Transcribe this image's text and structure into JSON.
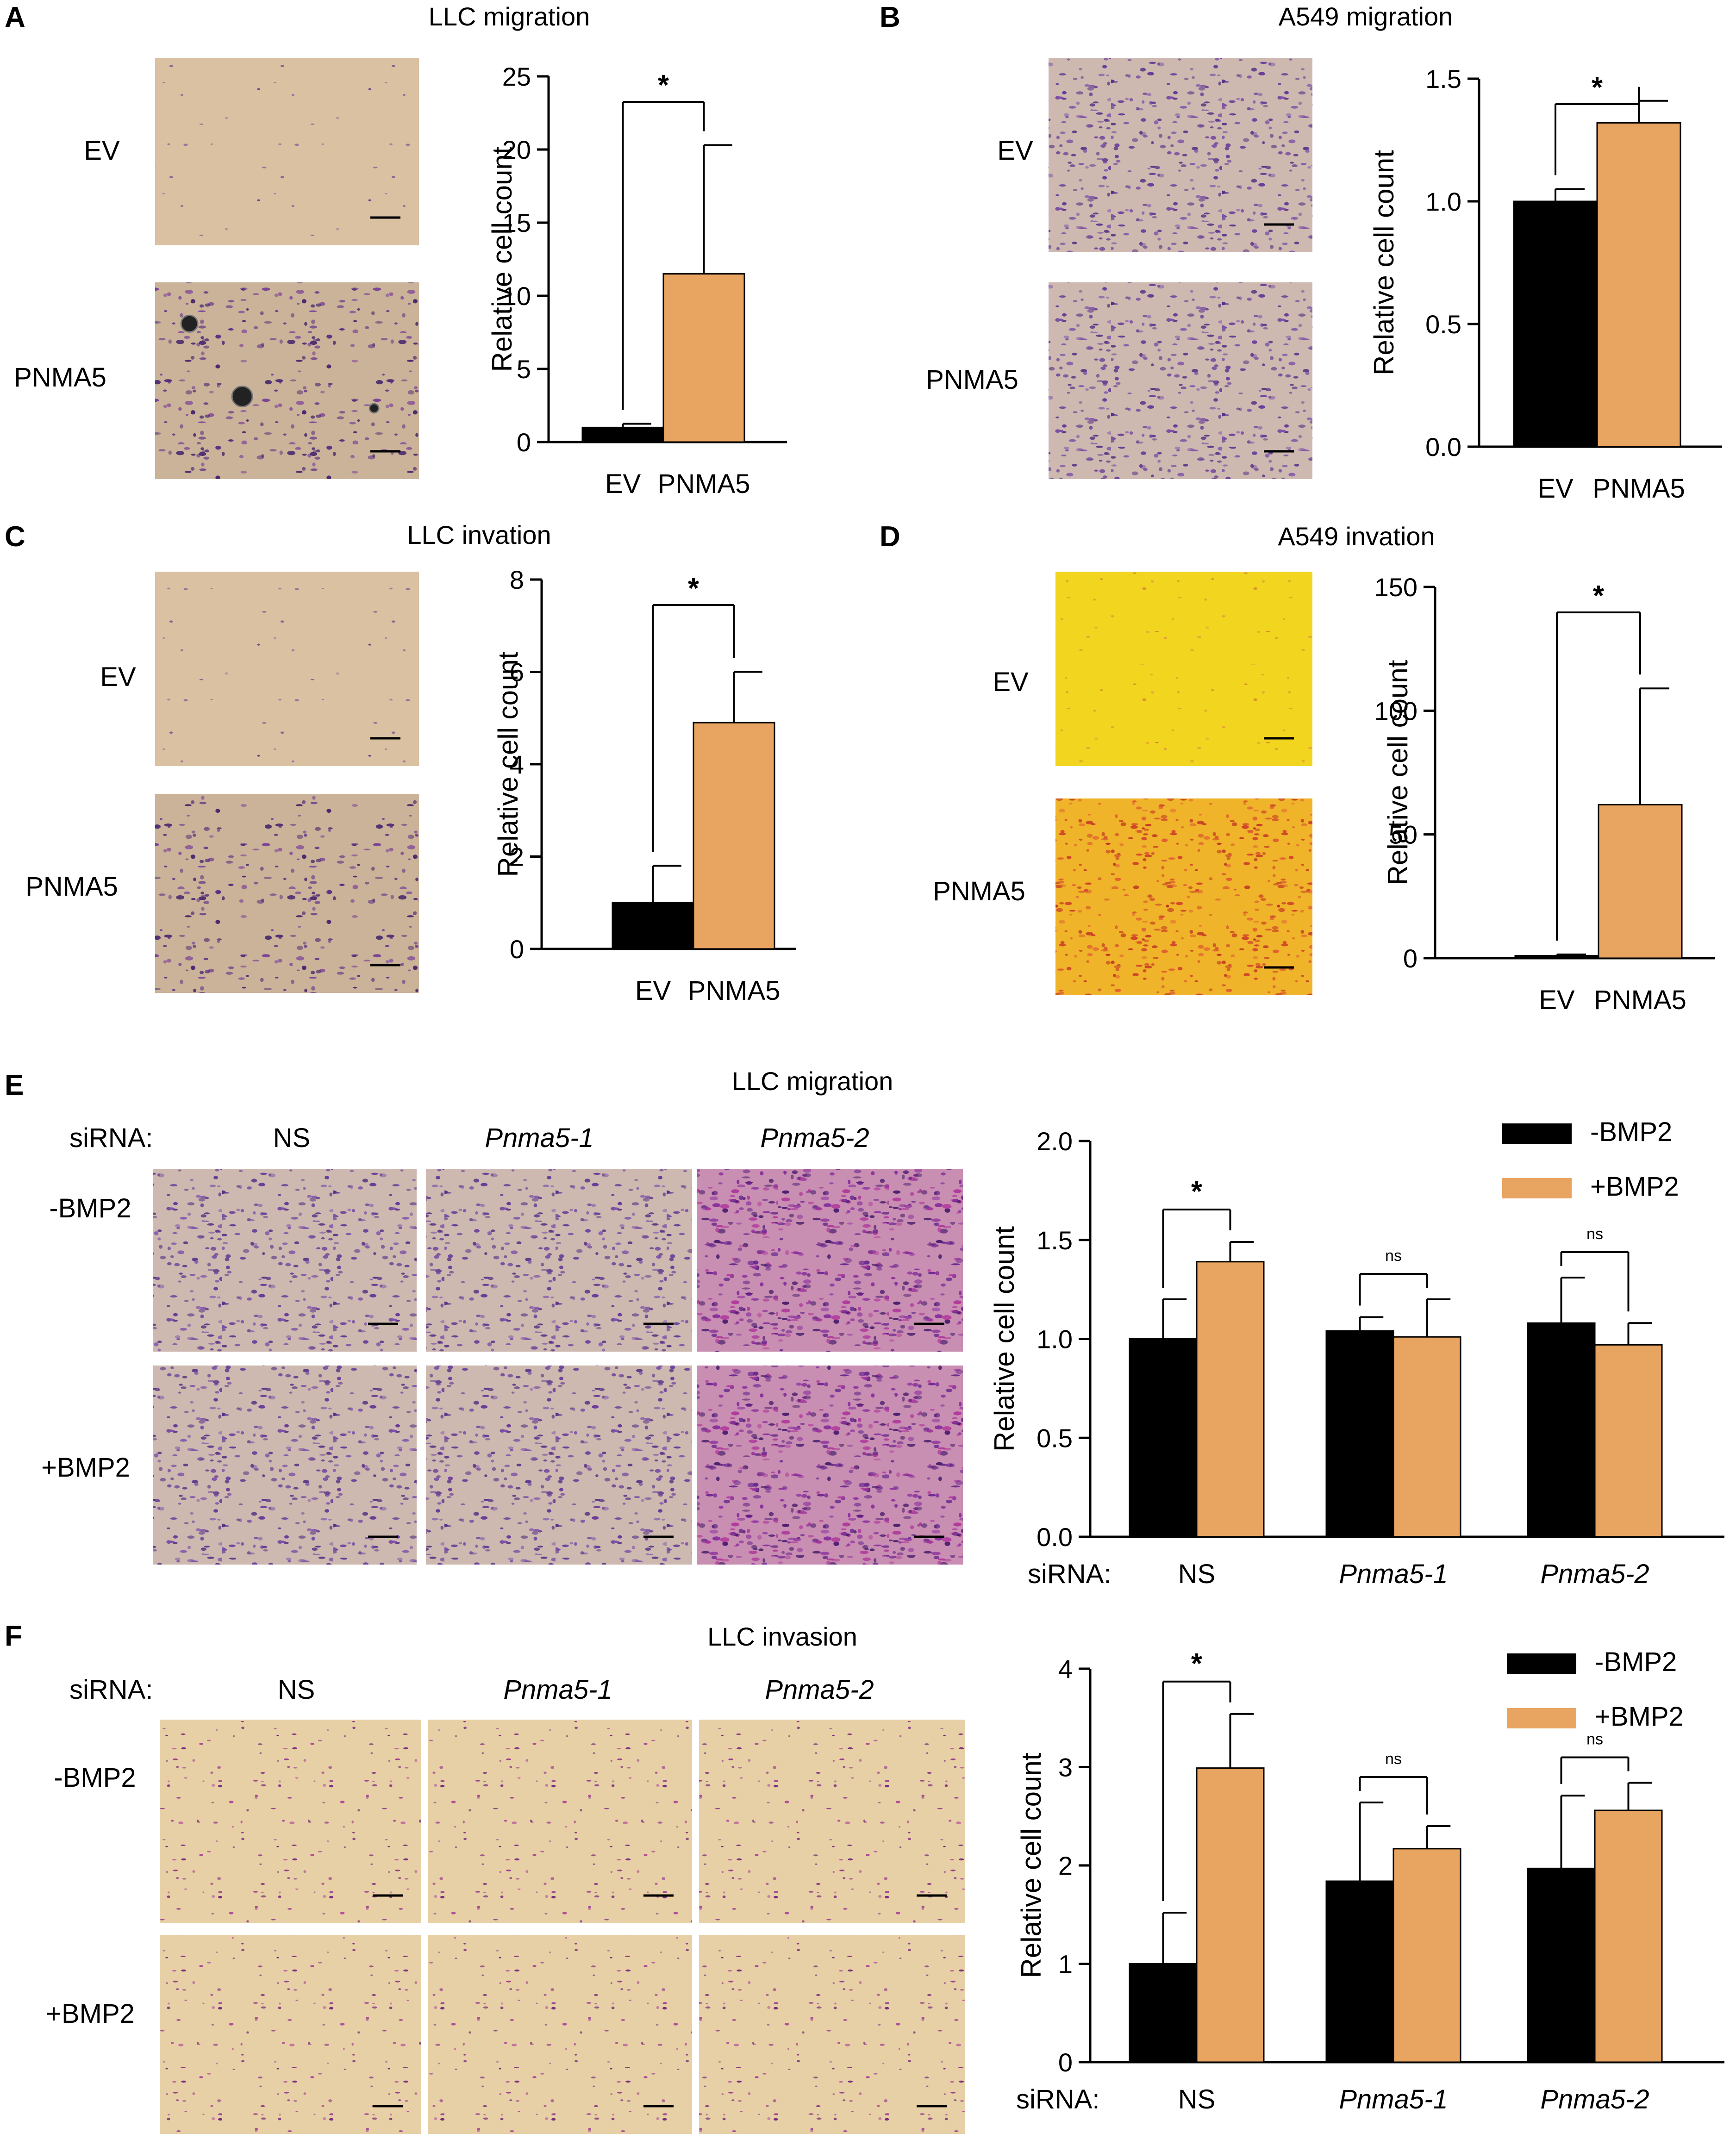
{
  "colors": {
    "ev": "#000000",
    "pnma5": "#E8A461",
    "axis": "#000000"
  },
  "panels": {
    "A": {
      "letter": "A",
      "title": "LLC migration",
      "row_labels": [
        "EV",
        "PNMA5"
      ],
      "texture": "purple_sparse"
    },
    "B": {
      "letter": "B",
      "title": "A549 migration",
      "row_labels": [
        "EV",
        "PNMA5"
      ],
      "texture": "purple_dense"
    },
    "C": {
      "letter": "C",
      "title": "LLC invation",
      "row_labels": [
        "EV",
        "PNMA5"
      ],
      "texture": "purple_sparse"
    },
    "D": {
      "letter": "D",
      "title": "A549 invation",
      "row_labels": [
        "EV",
        "PNMA5"
      ],
      "texture": "yellow_red"
    },
    "E": {
      "letter": "E",
      "title": "LLC   migration",
      "sirna_label": "siRNA:",
      "col_labels": [
        "NS",
        "Pnma5-1",
        "Pnma5-2"
      ],
      "row_labels": [
        "-BMP2",
        "+BMP2"
      ]
    },
    "F": {
      "letter": "F",
      "title": "LLC invasion",
      "sirna_label": "siRNA:",
      "col_labels": [
        "NS",
        "Pnma5-1",
        "Pnma5-2"
      ],
      "row_labels": [
        "-BMP2",
        "+BMP2"
      ]
    }
  },
  "chart_data": [
    {
      "panel": "A",
      "type": "bar",
      "categories": [
        "EV",
        "PNMA5"
      ],
      "values": [
        1.0,
        11.5
      ],
      "errors": [
        0.25,
        8.8
      ],
      "ylabel": "Relative cell count",
      "ylim": [
        0,
        25
      ],
      "yticks": [
        0,
        5,
        10,
        15,
        20,
        25
      ],
      "significance": [
        {
          "pair": [
            "EV",
            "PNMA5"
          ],
          "label": "*"
        }
      ]
    },
    {
      "panel": "B",
      "type": "bar",
      "categories": [
        "EV",
        "PNMA5"
      ],
      "values": [
        1.0,
        1.32
      ],
      "errors": [
        0.05,
        0.09
      ],
      "ylabel": "Relative cell count",
      "ylim": [
        0,
        1.5
      ],
      "yticks": [
        "0.0",
        "0.5",
        "1.0",
        "1.5"
      ],
      "significance": [
        {
          "pair": [
            "EV",
            "PNMA5"
          ],
          "label": "*"
        }
      ]
    },
    {
      "panel": "C",
      "type": "bar",
      "categories": [
        "EV",
        "PNMA5"
      ],
      "values": [
        1.0,
        4.9
      ],
      "errors": [
        0.8,
        1.1
      ],
      "ylabel": "Relative cell count",
      "ylim": [
        0,
        8
      ],
      "yticks": [
        0,
        2,
        4,
        6,
        8
      ],
      "significance": [
        {
          "pair": [
            "EV",
            "PNMA5"
          ],
          "label": "*"
        }
      ]
    },
    {
      "panel": "D",
      "type": "bar",
      "categories": [
        "EV",
        "PNMA5"
      ],
      "values": [
        1.0,
        62
      ],
      "errors": [
        0.5,
        47
      ],
      "ylabel": "Relative cell count",
      "ylim": [
        0,
        150
      ],
      "yticks": [
        0,
        50,
        100,
        150
      ],
      "significance": [
        {
          "pair": [
            "EV",
            "PNMA5"
          ],
          "label": "*"
        }
      ]
    },
    {
      "panel": "E",
      "type": "bar",
      "x_prefix": "siRNA:",
      "categories": [
        "NS",
        "Pnma5-1",
        "Pnma5-2"
      ],
      "series": [
        {
          "name": "-BMP2",
          "values": [
            1.0,
            1.04,
            1.08
          ],
          "errors": [
            0.2,
            0.07,
            0.23
          ]
        },
        {
          "name": "+BMP2",
          "values": [
            1.39,
            1.01,
            0.97
          ],
          "errors": [
            0.1,
            0.19,
            0.11
          ]
        }
      ],
      "ylabel": "Relative cell count",
      "ylim": [
        0,
        2.0
      ],
      "yticks": [
        "0.0",
        "0.5",
        "1.0",
        "1.5",
        "2.0"
      ],
      "legend": "top-right",
      "significance": [
        {
          "group": "NS",
          "label": "*"
        },
        {
          "group": "Pnma5-1",
          "label": "ns"
        },
        {
          "group": "Pnma5-2",
          "label": "ns"
        }
      ]
    },
    {
      "panel": "F",
      "type": "bar",
      "x_prefix": "siRNA:",
      "categories": [
        "NS",
        "Pnma5-1",
        "Pnma5-2"
      ],
      "series": [
        {
          "name": "-BMP2",
          "values": [
            1.0,
            1.84,
            1.97
          ],
          "errors": [
            0.52,
            0.8,
            0.74
          ]
        },
        {
          "name": "+BMP2",
          "values": [
            2.99,
            2.17,
            2.56
          ],
          "errors": [
            0.55,
            0.23,
            0.28
          ]
        }
      ],
      "ylabel": "Relative cell count",
      "ylim": [
        0,
        4
      ],
      "yticks": [
        0,
        1,
        2,
        3,
        4
      ],
      "legend": "top-right",
      "significance": [
        {
          "group": "NS",
          "label": "*"
        },
        {
          "group": "Pnma5-1",
          "label": "ns"
        },
        {
          "group": "Pnma5-2",
          "label": "ns"
        }
      ]
    }
  ]
}
